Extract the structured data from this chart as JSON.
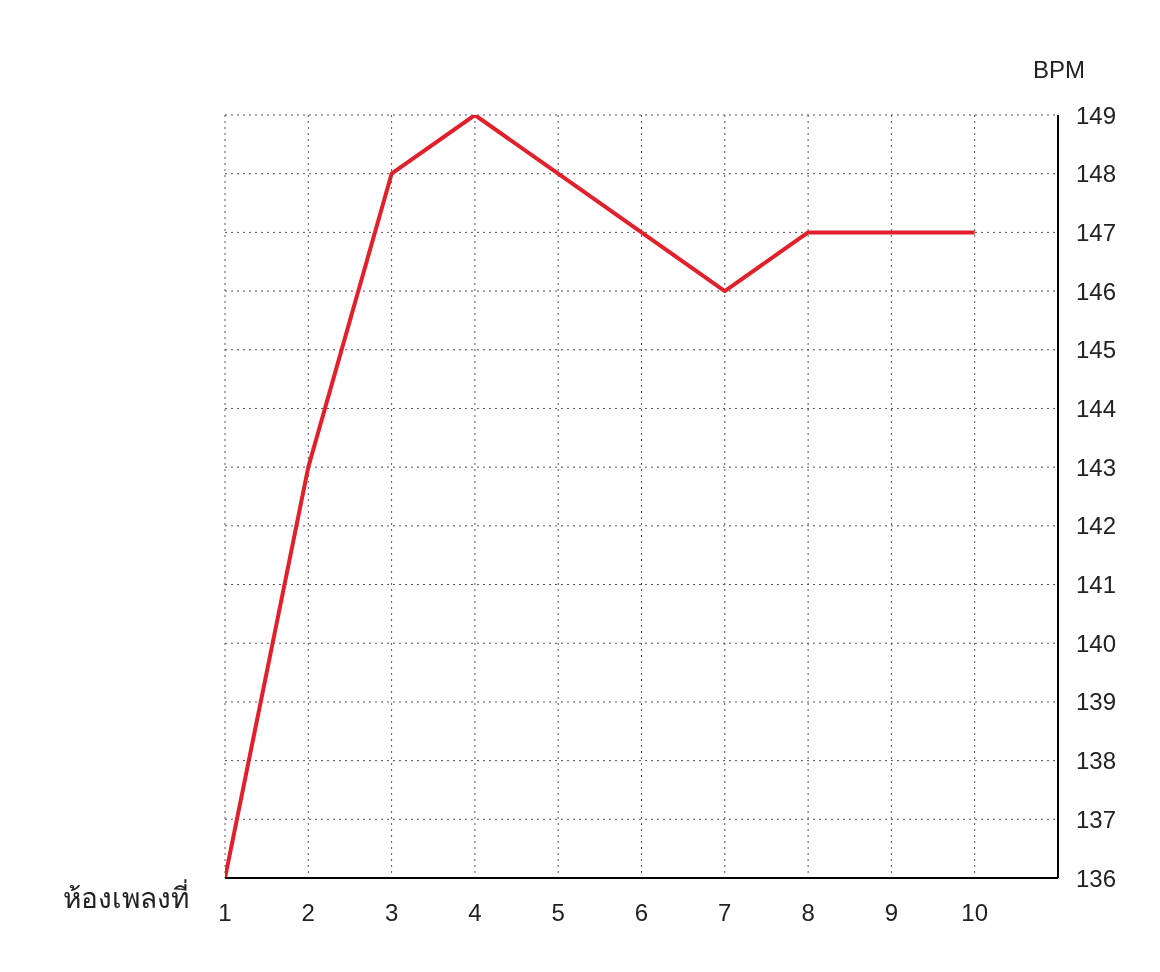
{
  "chart_data": {
    "type": "line",
    "xlabel": "ห้องเพลงที่",
    "ylabel": "BPM",
    "x": [
      1,
      2,
      3,
      4,
      5,
      6,
      7,
      8,
      9,
      10
    ],
    "series": [
      {
        "color": "#e0202a",
        "values": [
          136,
          143,
          148,
          149,
          148,
          147,
          146,
          147,
          147,
          147
        ]
      }
    ],
    "xlim": [
      1,
      11
    ],
    "xticks": [
      1,
      2,
      3,
      4,
      5,
      6,
      7,
      8,
      9,
      10
    ],
    "ylim": [
      136,
      149
    ],
    "yticks": [
      136,
      137,
      138,
      139,
      140,
      141,
      142,
      143,
      144,
      145,
      146,
      147,
      148,
      149
    ],
    "grid": true,
    "marker": "none",
    "line_style": "solid"
  }
}
